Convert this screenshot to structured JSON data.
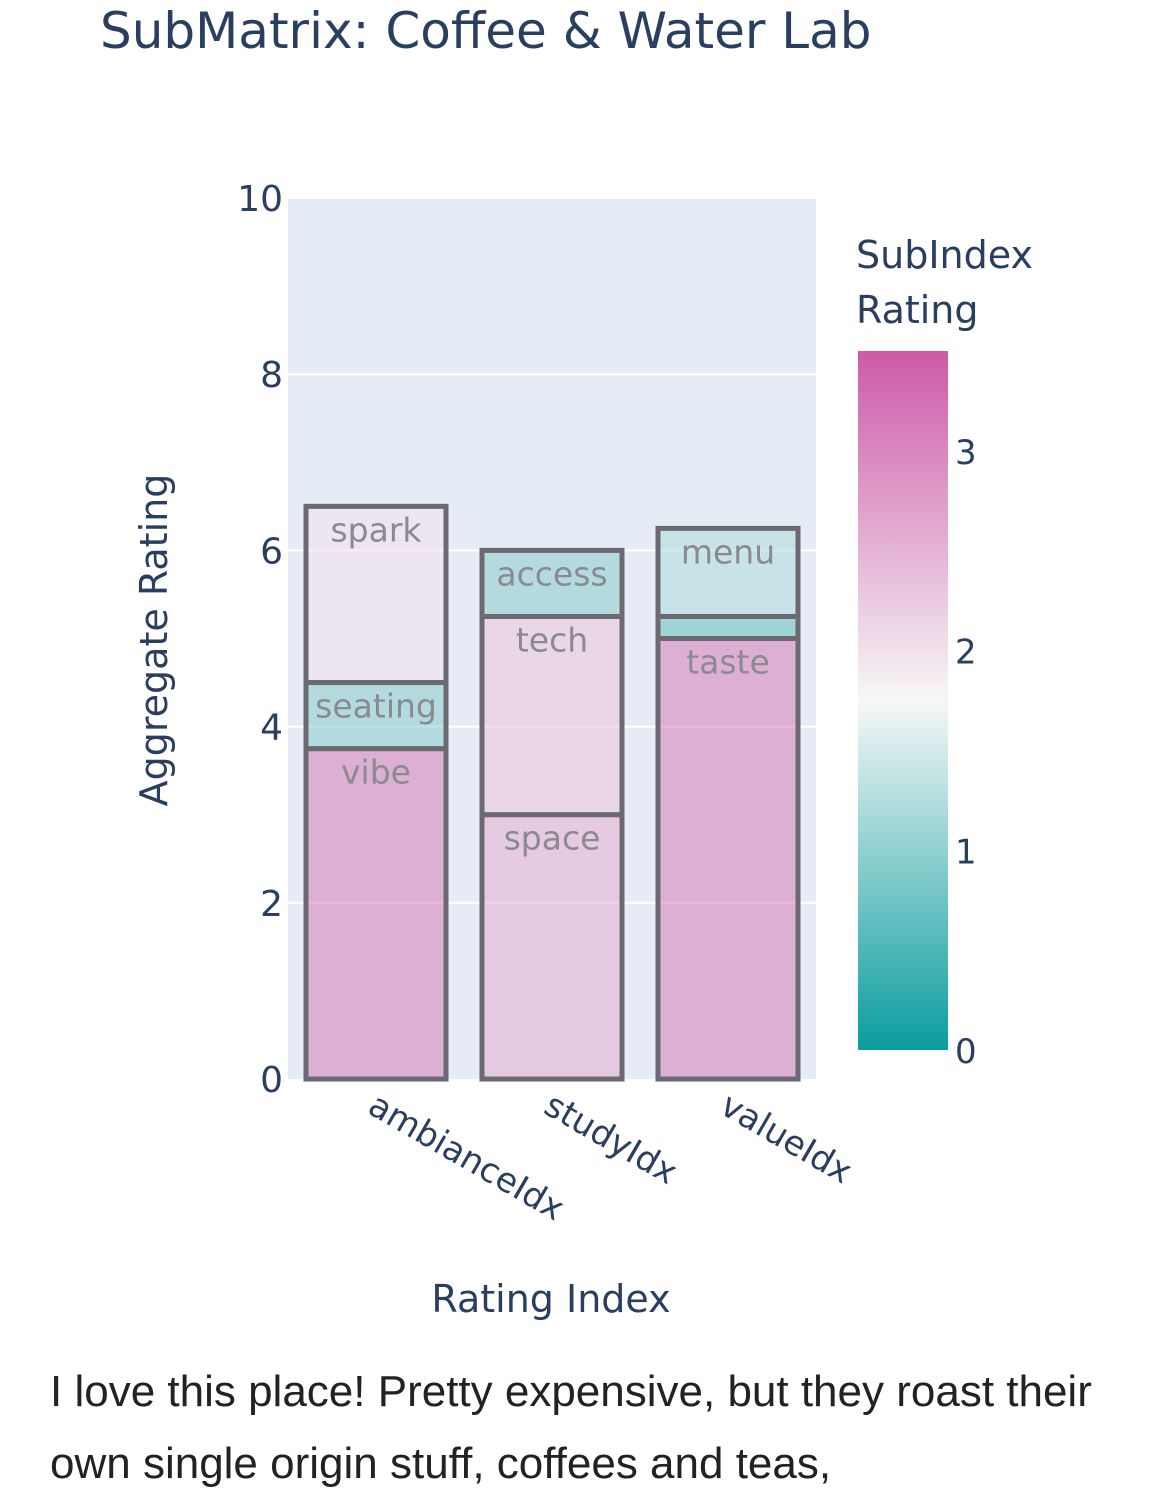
{
  "chart_data": {
    "type": "bar",
    "stacked": true,
    "title": "SubMatrix: Coffee & Water Lab",
    "xlabel": "Rating Index",
    "ylabel": "Aggregate Rating",
    "ylim": [
      0,
      10
    ],
    "yticks": [
      0,
      2,
      4,
      6,
      8,
      10
    ],
    "grid": true,
    "categories": [
      "ambianceIdx",
      "studyIdx",
      "valueIdx"
    ],
    "stacks": [
      {
        "category": "ambianceIdx",
        "segments": [
          {
            "label": "vibe",
            "value": 3.75,
            "rating": 3.0
          },
          {
            "label": "seating",
            "value": 0.75,
            "rating": 1.0
          },
          {
            "label": "spark",
            "value": 2.0,
            "rating": 2.0
          }
        ]
      },
      {
        "category": "studyIdx",
        "segments": [
          {
            "label": "space",
            "value": 3.0,
            "rating": 2.5
          },
          {
            "label": "tech",
            "value": 2.25,
            "rating": 2.25
          },
          {
            "label": "access",
            "value": 0.75,
            "rating": 1.0
          }
        ]
      },
      {
        "category": "valueIdx",
        "segments": [
          {
            "label": "taste",
            "value": 5.0,
            "rating": 3.0
          },
          {
            "label": "-",
            "value": 0.25,
            "rating": 0.75
          },
          {
            "label": "menu",
            "value": 1.0,
            "rating": 1.25
          }
        ]
      }
    ],
    "colorbar": {
      "title_lines": [
        "SubIndex",
        "Rating"
      ],
      "range": [
        0,
        3.5
      ],
      "ticks": [
        0,
        1,
        2,
        3
      ],
      "colors": [
        "#0a9d9f",
        "#f7f7f7",
        "#cc5aa8"
      ]
    }
  },
  "review": {
    "text": "I love this place! Pretty expensive, but they roast their own single origin stuff, coffees and teas,"
  }
}
